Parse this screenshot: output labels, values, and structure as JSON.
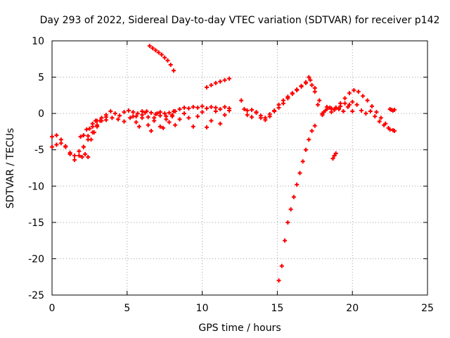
{
  "chart_data": {
    "type": "scatter",
    "title": "Day 293 of 2022, Sidereal Day-to-day VTEC variation (SDTVAR) for receiver p142",
    "xlabel": "GPS time / hours",
    "ylabel": "SDTVAR / TECUs",
    "xlim": [
      0,
      25
    ],
    "ylim": [
      -25,
      10
    ],
    "xticks": [
      0,
      5,
      10,
      15,
      20,
      25
    ],
    "yticks": [
      -25,
      -20,
      -15,
      -10,
      -5,
      0,
      5,
      10
    ],
    "xtick_labels": [
      "0",
      "5",
      "10",
      "15",
      "20",
      "25"
    ],
    "ytick_labels": [
      "-25",
      "-20",
      "-15",
      "-10",
      "-5",
      "0",
      "5",
      "10"
    ],
    "grid": true,
    "marker": "plus",
    "color": "#ff0000",
    "series": [
      {
        "x": [
          0.0,
          0.3,
          0.6,
          0.9,
          1.2,
          1.5,
          1.8,
          2.1,
          2.4,
          2.7,
          3.0,
          3.3,
          3.6,
          3.9,
          4.2,
          4.5,
          4.8,
          5.1,
          5.4,
          5.7,
          6.0,
          6.3,
          6.6,
          6.9,
          7.2,
          7.5,
          7.8,
          8.1
        ],
        "y": [
          -3.2,
          -3.0,
          -3.6,
          -4.6,
          -5.4,
          -5.8,
          -5.2,
          -4.6,
          -3.1,
          -1.8,
          -1.0,
          -0.6,
          -0.2,
          0.3,
          0.0,
          -0.3,
          0.2,
          0.4,
          0.2,
          0.0,
          0.3,
          0.3,
          0.1,
          -0.1,
          0.2,
          0.0,
          0.1,
          0.3
        ]
      },
      {
        "x": [
          0.0,
          0.3,
          0.6,
          0.9,
          1.2,
          1.5,
          1.8,
          2.1,
          2.4,
          2.7,
          3.0,
          3.3,
          3.6
        ],
        "y": [
          -4.6,
          -4.3,
          -4.1,
          -4.5,
          -5.6,
          -6.4,
          -5.8,
          -4.6,
          -3.6,
          -2.6,
          -1.8,
          -1.0,
          -0.5
        ]
      },
      {
        "x": [
          1.9,
          2.0,
          2.1,
          2.2,
          2.3,
          2.4,
          2.5,
          2.6,
          2.7,
          2.8,
          2.9,
          3.0
        ],
        "y": [
          -3.2,
          -6.0,
          -3.0,
          -5.6,
          -2.2,
          -6.0,
          -2.1,
          -3.6,
          -1.4,
          -2.6,
          -1.0,
          -1.6
        ]
      },
      {
        "x": [
          3.2,
          3.6,
          4.0,
          4.4,
          4.8,
          5.2,
          5.6,
          6.0,
          6.4,
          6.8,
          7.2,
          7.6,
          8.0
        ],
        "y": [
          -1.0,
          -0.9,
          -0.6,
          -0.8,
          -1.1,
          -0.6,
          -0.4,
          -0.2,
          -0.5,
          -0.6,
          -0.3,
          -0.4,
          -0.2
        ]
      },
      {
        "x": [
          5.4,
          5.6,
          5.8,
          6.0,
          6.2,
          6.4,
          6.6,
          6.8,
          7.0,
          7.2,
          7.4,
          7.6,
          7.8,
          8.0
        ],
        "y": [
          -0.4,
          -1.2,
          -1.8,
          -0.6,
          0.1,
          -1.6,
          -2.4,
          -1.0,
          0.0,
          -1.8,
          -2.0,
          -0.8,
          -1.2,
          -0.4
        ]
      },
      {
        "x": [
          6.5,
          6.7,
          6.9,
          7.1,
          7.3,
          7.5,
          7.7,
          7.9,
          8.1
        ],
        "y": [
          9.3,
          9.0,
          8.7,
          8.4,
          8.1,
          7.7,
          7.3,
          6.7,
          5.9
        ]
      },
      {
        "x": [
          8.2,
          8.5,
          8.8,
          9.1,
          9.4,
          9.7,
          10.0,
          10.3,
          10.6,
          10.9,
          11.2,
          11.5,
          11.8
        ],
        "y": [
          0.3,
          0.6,
          0.8,
          0.7,
          0.9,
          0.8,
          1.0,
          0.7,
          0.9,
          0.8,
          0.6,
          0.9,
          0.7
        ]
      },
      {
        "x": [
          8.2,
          8.5,
          8.8,
          9.1,
          9.4,
          9.7,
          10.0,
          10.3,
          10.6,
          10.9,
          11.2,
          11.5,
          11.8
        ],
        "y": [
          -1.6,
          -0.8,
          0.0,
          -0.6,
          -1.8,
          -0.4,
          0.2,
          -1.9,
          -1.0,
          0.3,
          -1.4,
          -0.2,
          0.4
        ]
      },
      {
        "x": [
          10.3,
          10.6,
          10.9,
          11.2,
          11.5,
          11.8
        ],
        "y": [
          3.6,
          3.9,
          4.2,
          4.4,
          4.6,
          4.8
        ]
      },
      {
        "x": [
          12.6,
          12.8,
          13.0,
          13.3,
          13.6,
          13.9,
          14.2,
          14.5,
          14.8,
          15.1,
          15.4,
          15.7,
          16.0,
          16.3,
          16.6,
          16.9,
          17.1,
          17.3,
          17.5,
          17.7,
          18.0,
          18.3,
          18.6,
          18.9,
          19.2,
          19.5,
          19.8,
          20.0
        ],
        "y": [
          1.8,
          0.6,
          0.4,
          0.5,
          0.2,
          -0.6,
          -0.9,
          -0.4,
          0.3,
          1.2,
          1.8,
          2.3,
          2.8,
          3.3,
          3.8,
          4.3,
          5.0,
          3.9,
          3.0,
          1.2,
          -0.2,
          0.9,
          0.7,
          0.8,
          1.0,
          1.4,
          1.2,
          0.3
        ]
      },
      {
        "x": [
          13.0,
          13.3,
          13.6,
          13.9,
          14.2,
          14.5,
          14.8,
          15.1,
          15.4,
          15.7,
          16.0,
          16.3,
          16.6,
          16.9,
          17.2,
          17.5,
          17.8,
          18.1
        ],
        "y": [
          -0.2,
          -0.5,
          0.1,
          -0.3,
          -0.6,
          -0.1,
          0.4,
          0.8,
          1.4,
          2.1,
          2.7,
          3.2,
          3.7,
          4.2,
          4.6,
          3.5,
          1.8,
          0.2
        ]
      },
      {
        "x": [
          18.0,
          18.3,
          18.6,
          18.9,
          19.2,
          19.5,
          19.8,
          20.1,
          20.4,
          20.7,
          21.0,
          21.3,
          21.6,
          21.9,
          22.2,
          22.5,
          22.8
        ],
        "y": [
          0.0,
          0.6,
          0.2,
          0.8,
          1.4,
          2.1,
          2.8,
          3.2,
          3.0,
          2.4,
          1.8,
          1.0,
          0.2,
          -0.6,
          -1.4,
          -2.2,
          -2.4
        ]
      },
      {
        "x": [
          18.2,
          18.5,
          18.8,
          19.1,
          19.4,
          19.7,
          20.0,
          20.3,
          20.6,
          20.9,
          21.2,
          21.5,
          21.8,
          22.1,
          22.4,
          22.7
        ],
        "y": [
          0.4,
          0.8,
          0.5,
          0.6,
          0.3,
          0.9,
          1.6,
          1.2,
          0.4,
          0.0,
          0.3,
          -0.4,
          -1.1,
          -1.6,
          -2.0,
          -2.3
        ]
      },
      {
        "x": [
          22.5,
          22.6,
          22.7,
          22.8
        ],
        "y": [
          0.6,
          0.5,
          0.4,
          0.5
        ]
      },
      {
        "x": [
          15.1,
          15.3,
          15.5,
          15.7,
          15.9,
          16.1,
          16.3,
          16.5,
          16.7,
          16.9,
          17.1,
          17.3,
          17.5
        ],
        "y": [
          -23.0,
          -21.0,
          -17.5,
          -15.0,
          -13.2,
          -11.5,
          -9.8,
          -8.2,
          -6.6,
          -5.0,
          -3.6,
          -2.4,
          -1.7
        ]
      },
      {
        "x": [
          18.7,
          18.8,
          18.9
        ],
        "y": [
          -6.2,
          -5.8,
          -5.5
        ]
      }
    ]
  }
}
